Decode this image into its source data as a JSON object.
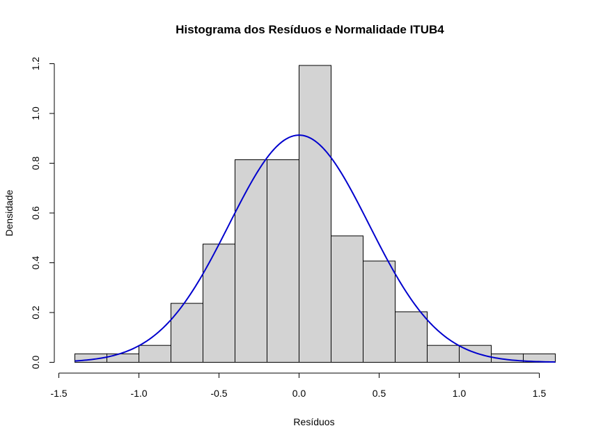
{
  "chart_data": {
    "type": "bar",
    "title": "Histograma dos Resíduos e Normalidade ITUB4",
    "xlabel": "Resíduos",
    "ylabel": "Densidade",
    "xlim": [
      -1.5,
      1.6
    ],
    "ylim": [
      0,
      1.2
    ],
    "x_ticks": [
      "-1.5",
      "-1.0",
      "-0.5",
      "0.0",
      "0.5",
      "1.0",
      "1.5"
    ],
    "x_tick_values": [
      -1.5,
      -1.0,
      -0.5,
      0.0,
      0.5,
      1.0,
      1.5
    ],
    "y_ticks": [
      "0.0",
      "0.2",
      "0.4",
      "0.6",
      "0.8",
      "1.0",
      "1.2"
    ],
    "y_tick_values": [
      0.0,
      0.2,
      0.4,
      0.6,
      0.8,
      1.0,
      1.2
    ],
    "bins": [
      {
        "x0": -1.4,
        "x1": -1.2,
        "density": 0.034
      },
      {
        "x0": -1.2,
        "x1": -1.0,
        "density": 0.034
      },
      {
        "x0": -1.0,
        "x1": -0.8,
        "density": 0.068
      },
      {
        "x0": -0.8,
        "x1": -0.6,
        "density": 0.237
      },
      {
        "x0": -0.6,
        "x1": -0.4,
        "density": 0.475
      },
      {
        "x0": -0.4,
        "x1": -0.2,
        "density": 0.814
      },
      {
        "x0": -0.2,
        "x1": 0.0,
        "density": 0.814
      },
      {
        "x0": 0.0,
        "x1": 0.2,
        "density": 1.193
      },
      {
        "x0": 0.2,
        "x1": 0.4,
        "density": 0.508
      },
      {
        "x0": 0.4,
        "x1": 0.6,
        "density": 0.407
      },
      {
        "x0": 0.6,
        "x1": 0.8,
        "density": 0.203
      },
      {
        "x0": 0.8,
        "x1": 1.0,
        "density": 0.068
      },
      {
        "x0": 1.0,
        "x1": 1.2,
        "density": 0.068
      },
      {
        "x0": 1.2,
        "x1": 1.4,
        "density": 0.034
      },
      {
        "x0": 1.4,
        "x1": 1.6,
        "density": 0.034
      }
    ],
    "normal_curve": {
      "mean": 0.0,
      "sd": 0.437,
      "x_range": [
        -1.4,
        1.6
      ],
      "color": "#0000CD"
    },
    "bar_fill": "#D3D3D3",
    "bar_stroke": "#000000",
    "grid": false
  }
}
